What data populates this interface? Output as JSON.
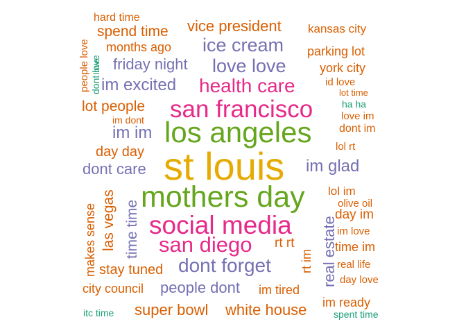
{
  "words": [
    {
      "text": "st louis",
      "color": "#e6ab02"
    },
    {
      "text": "los angeles",
      "color": "#66a61e"
    },
    {
      "text": "mothers day",
      "color": "#66a61e"
    },
    {
      "text": "social media",
      "color": "#e7298a"
    },
    {
      "text": "san francisco",
      "color": "#e7298a"
    },
    {
      "text": "san diego",
      "color": "#e7298a"
    },
    {
      "text": "health care",
      "color": "#e7298a"
    },
    {
      "text": "dont forget",
      "color": "#7570b3"
    },
    {
      "text": "ice cream",
      "color": "#7570b3"
    },
    {
      "text": "love love",
      "color": "#7570b3"
    },
    {
      "text": "im excited",
      "color": "#7570b3"
    },
    {
      "text": "im glad",
      "color": "#7570b3"
    },
    {
      "text": "im im",
      "color": "#7570b3"
    },
    {
      "text": "vice president",
      "color": "#d95f02"
    },
    {
      "text": "friday night",
      "color": "#7570b3"
    },
    {
      "text": "dont care",
      "color": "#7570b3"
    },
    {
      "text": "people dont",
      "color": "#7570b3"
    },
    {
      "text": "super bowl",
      "color": "#d95f02"
    },
    {
      "text": "white house",
      "color": "#d95f02"
    },
    {
      "text": "lot people",
      "color": "#d95f02"
    },
    {
      "text": "spend time",
      "color": "#d95f02"
    },
    {
      "text": "day day",
      "color": "#d95f02"
    },
    {
      "text": "stay tuned",
      "color": "#d95f02"
    },
    {
      "text": "im tired",
      "color": "#d95f02"
    },
    {
      "text": "months ago",
      "color": "#d95f02"
    },
    {
      "text": "parking lot",
      "color": "#d95f02"
    },
    {
      "text": "york city",
      "color": "#d95f02"
    },
    {
      "text": "city council",
      "color": "#d95f02"
    },
    {
      "text": "im ready",
      "color": "#d95f02"
    },
    {
      "text": "kansas city",
      "color": "#d95f02"
    },
    {
      "text": "rt rt",
      "color": "#d95f02"
    },
    {
      "text": "day im",
      "color": "#d95f02"
    },
    {
      "text": "time im",
      "color": "#d95f02"
    },
    {
      "text": "lol im",
      "color": "#d95f02"
    },
    {
      "text": "id love",
      "color": "#d95f02"
    },
    {
      "text": "hard time",
      "color": "#d95f02"
    },
    {
      "text": "dont im",
      "color": "#d95f02"
    },
    {
      "text": "love im",
      "color": "#d95f02"
    },
    {
      "text": "lol rt",
      "color": "#d95f02"
    },
    {
      "text": "im love",
      "color": "#d95f02"
    },
    {
      "text": "real life",
      "color": "#d95f02"
    },
    {
      "text": "day love",
      "color": "#d95f02"
    },
    {
      "text": "olive oil",
      "color": "#d95f02"
    },
    {
      "text": "ha ha",
      "color": "#1b9e77"
    },
    {
      "text": "im dont",
      "color": "#d95f02"
    },
    {
      "text": "lot time",
      "color": "#d95f02"
    },
    {
      "text": "itc time",
      "color": "#1b9e77"
    },
    {
      "text": "spent time",
      "color": "#1b9e77"
    },
    {
      "text": "time time",
      "color": "#7570b3"
    },
    {
      "text": "las vegas",
      "color": "#d95f02"
    },
    {
      "text": "makes sense",
      "color": "#d95f02"
    },
    {
      "text": "real estate",
      "color": "#7570b3"
    },
    {
      "text": "people love",
      "color": "#d95f02"
    },
    {
      "text": "dont love",
      "color": "#1b9e77"
    },
    {
      "text": "rt im",
      "color": "#d95f02"
    },
    {
      "text": "love",
      "color": "#1b9e77"
    }
  ]
}
